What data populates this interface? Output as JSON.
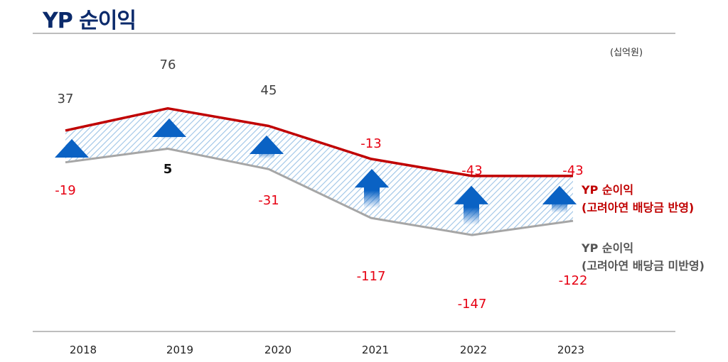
{
  "title": "YP 순이익",
  "unit": "(십억원)",
  "chart_data": {
    "type": "line",
    "categories": [
      "2018",
      "2019",
      "2020",
      "2021",
      "2022",
      "2023"
    ],
    "series": [
      {
        "name": "YP 순이익 (고려아연 배당금 반영)",
        "legend_lines": [
          "YP 순이익",
          "(고려아연 배당금 반영)"
        ],
        "color": "#c00000",
        "values": [
          37,
          76,
          45,
          -13,
          -43,
          -43
        ],
        "labels": [
          "37",
          "76",
          "45",
          "-13",
          "-43",
          "-43"
        ],
        "label_color": [
          "#404040",
          "#404040",
          "#404040",
          "#e60012",
          "#e60012",
          "#e60012"
        ]
      },
      {
        "name": "YP 순이익 (고려아연 배당금 미반영)",
        "legend_lines": [
          "YP 순이익",
          "(고려아연 배당금 미반영)"
        ],
        "color": "#a6a6a6",
        "values": [
          -19,
          5,
          -31,
          -117,
          -147,
          -122
        ],
        "labels": [
          "-19",
          "5",
          "-31",
          "-117",
          "-147",
          "-122"
        ],
        "label_color": [
          "#e60012",
          "#111111",
          "#e60012",
          "#e60012",
          "#e60012",
          "#e60012"
        ]
      }
    ],
    "fill_between": "hatched light blue",
    "arrows": "blue upward arrows between the two series",
    "grid": false,
    "legend": "right"
  }
}
